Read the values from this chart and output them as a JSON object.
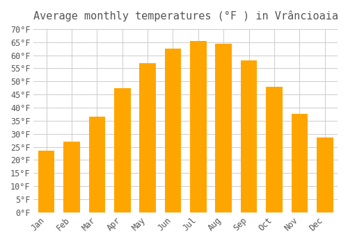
{
  "title": "Average monthly temperatures (°F ) in Vrâncioaia",
  "months": [
    "Jan",
    "Feb",
    "Mar",
    "Apr",
    "May",
    "Jun",
    "Jul",
    "Aug",
    "Sep",
    "Oct",
    "Nov",
    "Dec"
  ],
  "values": [
    23.5,
    27.0,
    36.5,
    47.5,
    57.0,
    62.5,
    65.5,
    64.5,
    58.0,
    48.0,
    37.5,
    28.5
  ],
  "bar_color_main": "#FFA500",
  "bar_color_edge": "#FFB733",
  "ylim": [
    0,
    70
  ],
  "yticks": [
    0,
    5,
    10,
    15,
    20,
    25,
    30,
    35,
    40,
    45,
    50,
    55,
    60,
    65,
    70
  ],
  "background_color": "#FFFFFF",
  "grid_color": "#CCCCCC",
  "title_fontsize": 11,
  "tick_fontsize": 8.5,
  "font_color": "#555555"
}
